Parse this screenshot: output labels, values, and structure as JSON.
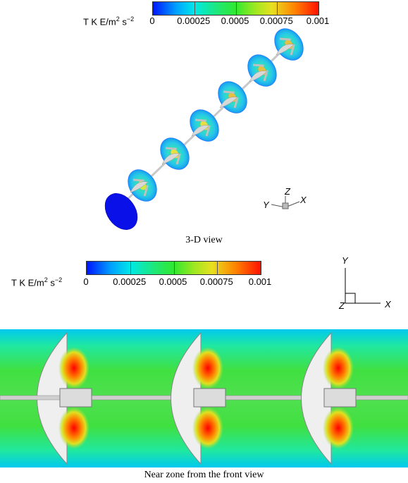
{
  "figure_top": {
    "colorbar": {
      "label_prefix": "T K E/m",
      "label_exp1": "2",
      "label_mid": " s",
      "label_exp2": "−2",
      "ticks": [
        "0",
        "0.00025",
        "0.0005",
        "0.00075",
        "0.001"
      ],
      "range": [
        0,
        0.001
      ]
    },
    "caption": "3-D view",
    "axes": {
      "z": "Z",
      "y": "Y",
      "x": "X"
    }
  },
  "figure_bottom": {
    "colorbar": {
      "label_prefix": "T K E/m",
      "label_exp1": "2",
      "label_mid": " s",
      "label_exp2": "−2",
      "ticks": [
        "0",
        "0.00025",
        "0.0005",
        "0.00075",
        "0.001"
      ],
      "range": [
        0,
        0.001
      ]
    },
    "axes": {
      "y": "Y",
      "z": "Z",
      "x": "X"
    },
    "caption": "Near zone from the front view"
  },
  "colors": {
    "low": "#0a10e0",
    "high": "#e00000"
  }
}
